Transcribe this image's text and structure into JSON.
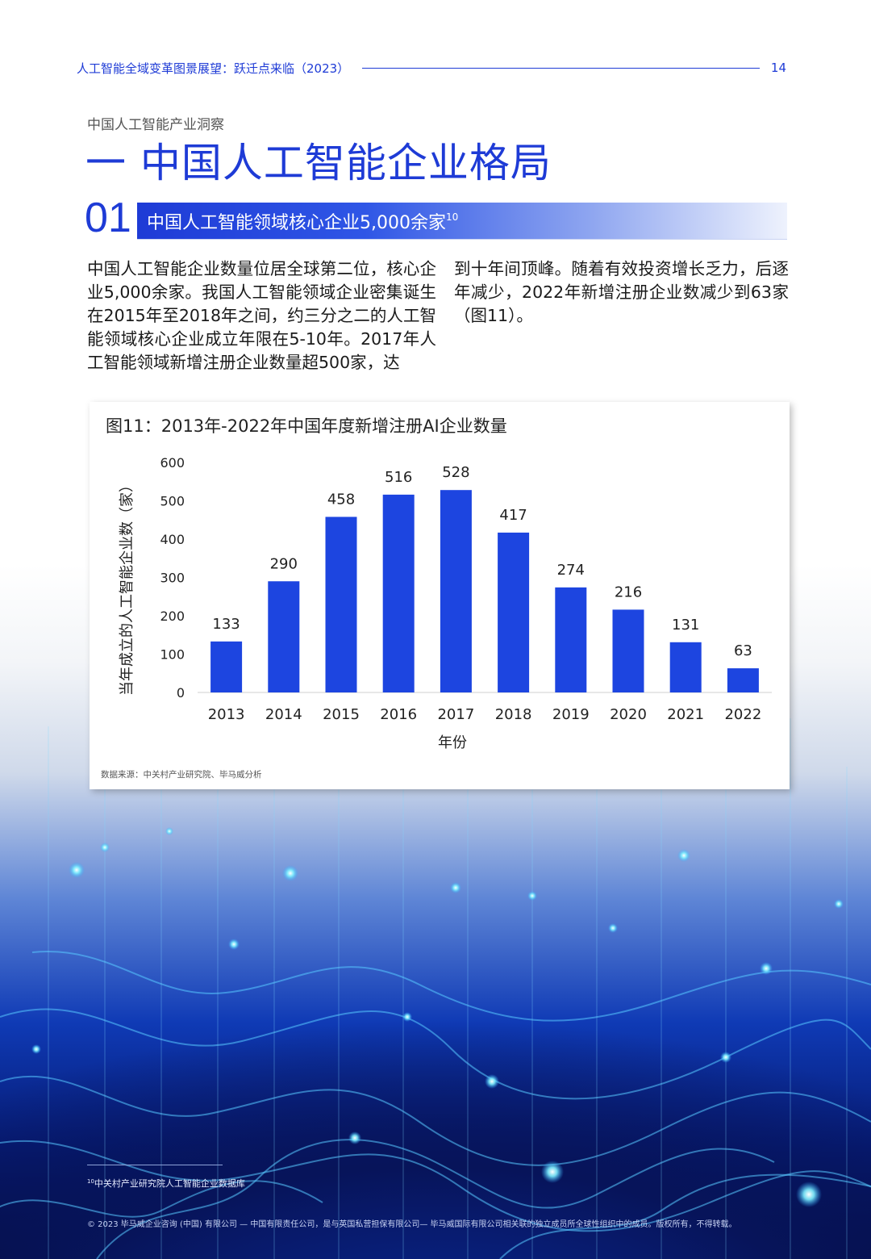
{
  "header": {
    "running_title": "人工智能全域变革图景展望：跃迁点来临（2023）",
    "page_number": "14"
  },
  "section": {
    "kicker": "中国人工智能产业洞察",
    "title": "一 中国人工智能企业格局"
  },
  "subsection": {
    "number": "01",
    "title": "中国人工智能领域核心企业5,000余家",
    "footnote_ref": "10"
  },
  "body": {
    "left": "中国人工智能企业数量位居全球第二位，核心企业5,000余家。我国人工智能领域企业密集诞生在2015年至2018年之间，约三分之二的人工智能领域核心企业成立年限在5-10年。2017年人工智能领域新增注册企业数量超500家，达",
    "right": "到十年间顶峰。随着有效投资增长乏力，后逐年减少，2022年新增注册企业数减少到63家（图11）。"
  },
  "figure": {
    "title": "图11：2013年-2022年中国年度新增注册AI企业数量",
    "source": "数据来源：中关村产业研究院、毕马威分析"
  },
  "chart_data": {
    "type": "bar",
    "categories": [
      "2013",
      "2014",
      "2015",
      "2016",
      "2017",
      "2018",
      "2019",
      "2020",
      "2021",
      "2022"
    ],
    "values": [
      133,
      290,
      458,
      516,
      528,
      417,
      274,
      216,
      131,
      63
    ],
    "title": "图11：2013年-2022年中国年度新增注册AI企业数量",
    "xlabel": "年份",
    "ylabel": "当年成立的人工智能企业数（家）",
    "ylim": [
      0,
      600
    ],
    "yticks": [
      0,
      100,
      200,
      300,
      400,
      500,
      600
    ],
    "grid": false,
    "bar_color": "#1d45e0",
    "data_labels": true
  },
  "footnote": {
    "number": "10",
    "text": "中关村产业研究院人工智能企业数据库"
  },
  "footer": {
    "copyright": "© 2023 毕马威企业咨询 (中国) 有限公司 — 中国有限责任公司，是与英国私营担保有限公司— 毕马威国际有限公司相关联的独立成员所全球性组织中的成员。版权所有，不得转载。"
  },
  "colors": {
    "accent": "#1e3bd6",
    "bar": "#1d45e0"
  }
}
